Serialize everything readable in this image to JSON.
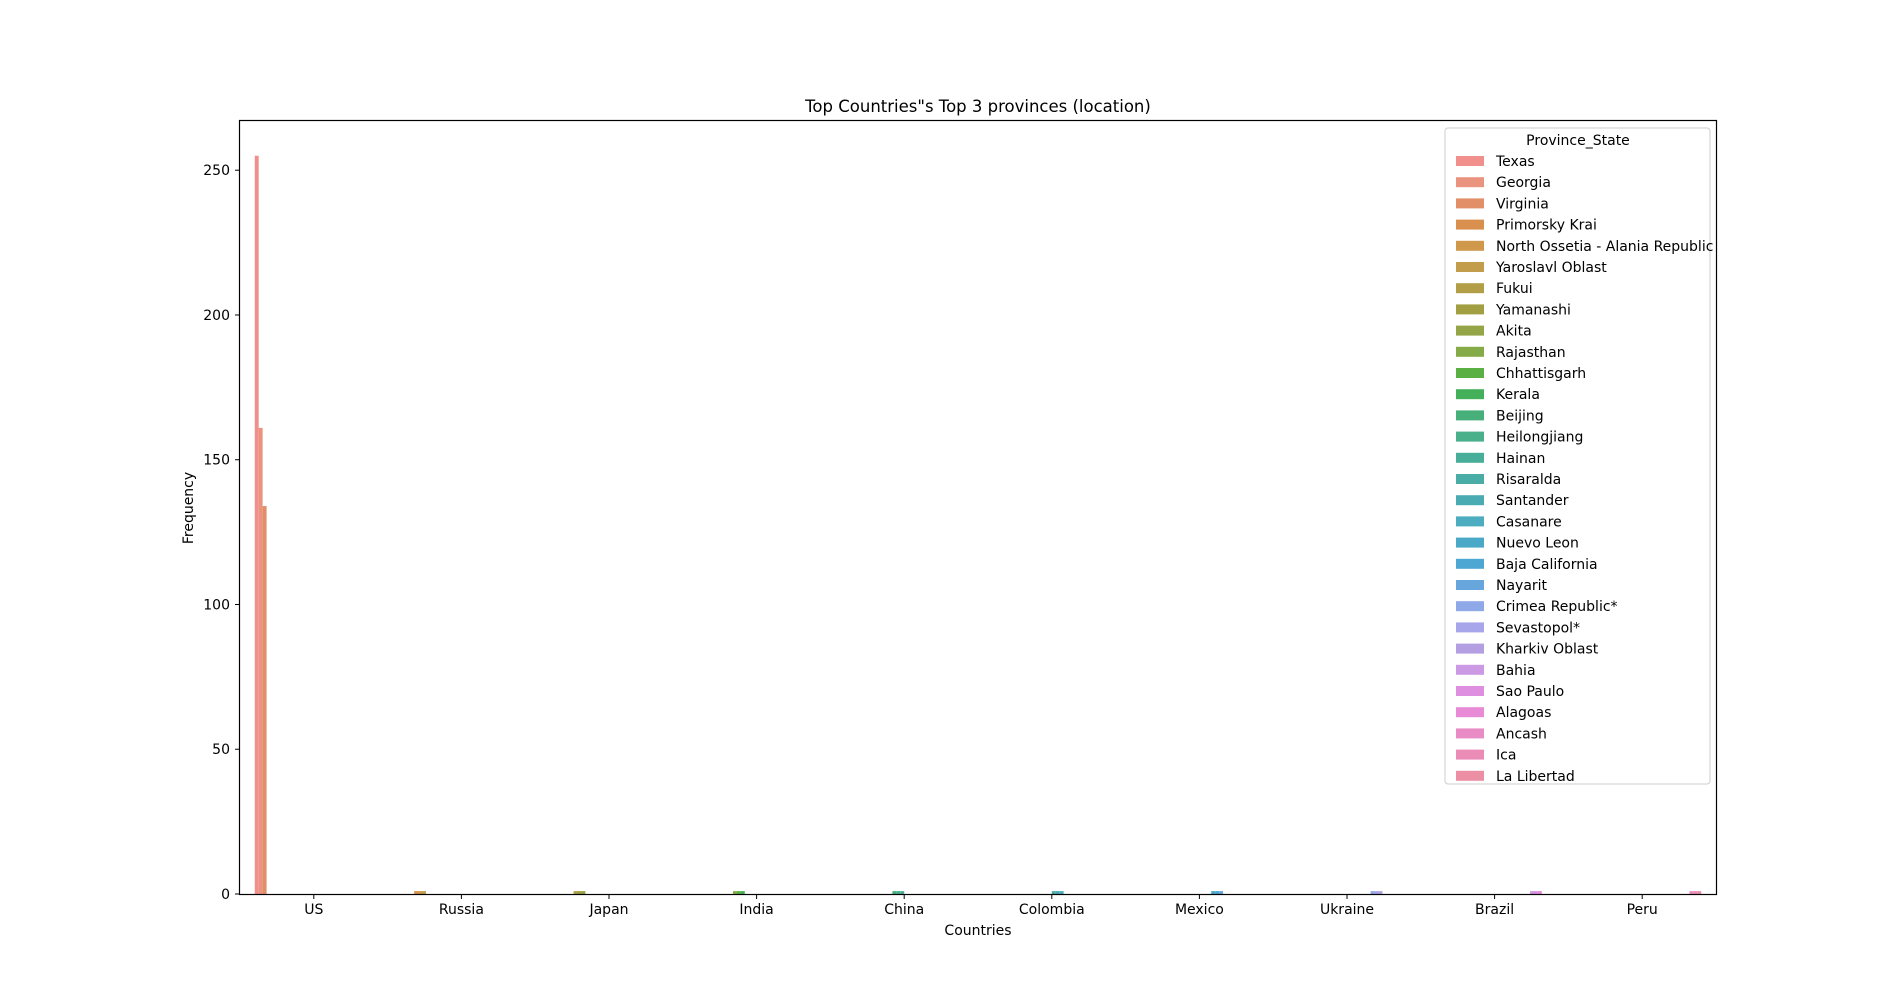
{
  "chart_data": {
    "type": "bar",
    "title": "Top Countries\"s Top 3 provinces (location)",
    "xlabel": "Countries",
    "ylabel": "Frequency",
    "ylim": [
      0,
      267
    ],
    "yticks": [
      0,
      50,
      100,
      150,
      200,
      250
    ],
    "categories": [
      "US",
      "Russia",
      "Japan",
      "India",
      "China",
      "Colombia",
      "Mexico",
      "Ukraine",
      "Brazil",
      "Peru"
    ],
    "legend_title": "Province_State",
    "legend_position": "top-right",
    "grid": false,
    "series": [
      {
        "name": "Texas",
        "color": "#f08f8c",
        "values": [
          255,
          0,
          0,
          0,
          0,
          0,
          0,
          0,
          0,
          0
        ]
      },
      {
        "name": "Georgia",
        "color": "#ea9480",
        "values": [
          161,
          0,
          0,
          0,
          0,
          0,
          0,
          0,
          0,
          0
        ]
      },
      {
        "name": "Virginia",
        "color": "#e28e66",
        "values": [
          134,
          0,
          0,
          0,
          0,
          0,
          0,
          0,
          0,
          0
        ]
      },
      {
        "name": "Primorsky Krai",
        "color": "#d9904f",
        "values": [
          0,
          1,
          0,
          0,
          0,
          0,
          0,
          0,
          0,
          0
        ]
      },
      {
        "name": "North Ossetia - Alania Republic",
        "color": "#cf984a",
        "values": [
          0,
          1,
          0,
          0,
          0,
          0,
          0,
          0,
          0,
          0
        ]
      },
      {
        "name": "Yaroslavl Oblast",
        "color": "#c19d4c",
        "values": [
          0,
          1,
          0,
          0,
          0,
          0,
          0,
          0,
          0,
          0
        ]
      },
      {
        "name": "Fukui",
        "color": "#b29e47",
        "values": [
          0,
          0,
          1,
          0,
          0,
          0,
          0,
          0,
          0,
          0
        ]
      },
      {
        "name": "Yamanashi",
        "color": "#a29f43",
        "values": [
          0,
          0,
          1,
          0,
          0,
          0,
          0,
          0,
          0,
          0
        ]
      },
      {
        "name": "Akita",
        "color": "#94a548",
        "values": [
          0,
          0,
          1,
          0,
          0,
          0,
          0,
          0,
          0,
          0
        ]
      },
      {
        "name": "Rajasthan",
        "color": "#84ab48",
        "values": [
          0,
          0,
          0,
          1,
          0,
          0,
          0,
          0,
          0,
          0
        ]
      },
      {
        "name": "Chhattisgarh",
        "color": "#5ab043",
        "values": [
          0,
          0,
          0,
          1,
          0,
          0,
          0,
          0,
          0,
          0
        ]
      },
      {
        "name": "Kerala",
        "color": "#44b15a",
        "values": [
          0,
          0,
          0,
          1,
          0,
          0,
          0,
          0,
          0,
          0
        ]
      },
      {
        "name": "Beijing",
        "color": "#47b07a",
        "values": [
          0,
          0,
          0,
          0,
          1,
          0,
          0,
          0,
          0,
          0
        ]
      },
      {
        "name": "Heilongjiang",
        "color": "#4ab08c",
        "values": [
          0,
          0,
          0,
          0,
          1,
          0,
          0,
          0,
          0,
          0
        ]
      },
      {
        "name": "Hainan",
        "color": "#48ae99",
        "values": [
          0,
          0,
          0,
          0,
          1,
          0,
          0,
          0,
          0,
          0
        ]
      },
      {
        "name": "Risaralda",
        "color": "#49ada6",
        "values": [
          0,
          0,
          0,
          0,
          0,
          1,
          0,
          0,
          0,
          0
        ]
      },
      {
        "name": "Santander",
        "color": "#4aacb2",
        "values": [
          0,
          0,
          0,
          0,
          0,
          1,
          0,
          0,
          0,
          0
        ]
      },
      {
        "name": "Casanare",
        "color": "#4badbf",
        "values": [
          0,
          0,
          0,
          0,
          0,
          1,
          0,
          0,
          0,
          0
        ]
      },
      {
        "name": "Nuevo Leon",
        "color": "#4aa9c7",
        "values": [
          0,
          0,
          0,
          0,
          0,
          0,
          1,
          0,
          0,
          0
        ]
      },
      {
        "name": "Baja California",
        "color": "#4ea7d2",
        "values": [
          0,
          0,
          0,
          0,
          0,
          0,
          1,
          0,
          0,
          0
        ]
      },
      {
        "name": "Nayarit",
        "color": "#67a5dd",
        "values": [
          0,
          0,
          0,
          0,
          0,
          0,
          1,
          0,
          0,
          0
        ]
      },
      {
        "name": "Crimea Republic*",
        "color": "#8fa9e8",
        "values": [
          0,
          0,
          0,
          0,
          0,
          0,
          0,
          1,
          0,
          0
        ]
      },
      {
        "name": "Sevastopol*",
        "color": "#a7a6ea",
        "values": [
          0,
          0,
          0,
          0,
          0,
          0,
          0,
          1,
          0,
          0
        ]
      },
      {
        "name": "Kharkiv Oblast",
        "color": "#b59fe3",
        "values": [
          0,
          0,
          0,
          0,
          0,
          0,
          0,
          1,
          0,
          0
        ]
      },
      {
        "name": "Bahia",
        "color": "#cc99e4",
        "values": [
          0,
          0,
          0,
          0,
          0,
          0,
          0,
          0,
          1,
          0
        ]
      },
      {
        "name": "Sao Paulo",
        "color": "#de8fe0",
        "values": [
          0,
          0,
          0,
          0,
          0,
          0,
          0,
          0,
          1,
          0
        ]
      },
      {
        "name": "Alagoas",
        "color": "#e88ad6",
        "values": [
          0,
          0,
          0,
          0,
          0,
          0,
          0,
          0,
          1,
          0
        ]
      },
      {
        "name": "Ancash",
        "color": "#e98cc6",
        "values": [
          0,
          0,
          0,
          0,
          0,
          0,
          0,
          0,
          0,
          1
        ]
      },
      {
        "name": "Ica",
        "color": "#eb8cb6",
        "values": [
          0,
          0,
          0,
          0,
          0,
          0,
          0,
          0,
          0,
          1
        ]
      },
      {
        "name": "La Libertad",
        "color": "#ec8fa5",
        "values": [
          0,
          0,
          0,
          0,
          0,
          0,
          0,
          0,
          0,
          1
        ]
      }
    ]
  }
}
